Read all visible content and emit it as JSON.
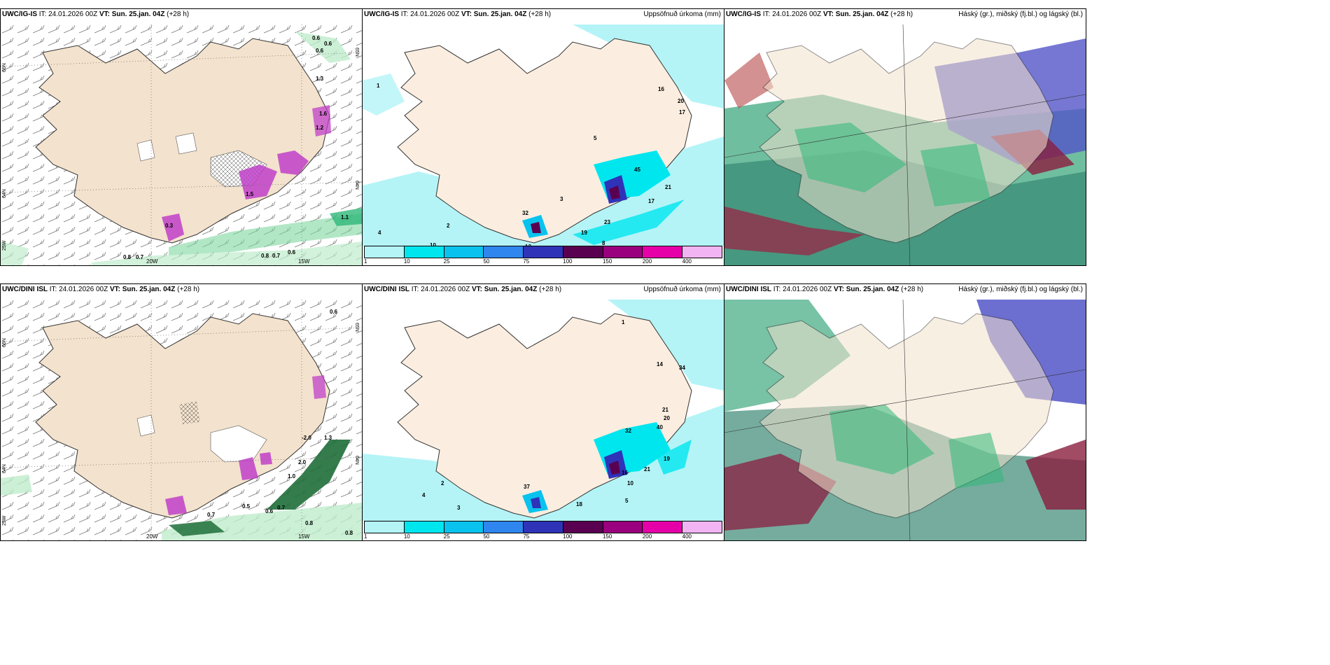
{
  "rows": [
    {
      "panels": [
        {
          "model": "UWC/IG-IS",
          "init_label": "IT:",
          "init_time": "24.01.2026 00Z",
          "vt_label": "VT:",
          "valid_time": "Sun. 25.jan. 04Z",
          "lead": "(+28 h)",
          "right_title": ""
        },
        {
          "model": "UWC/IG-IS",
          "init_label": "IT:",
          "init_time": "24.01.2026 00Z",
          "vt_label": "VT:",
          "valid_time": "Sun. 25.jan. 04Z",
          "lead": "(+28 h)",
          "right_title": "Uppsöfnuð úrkoma (mm)"
        },
        {
          "model": "UWC/IG-IS",
          "init_label": "IT:",
          "init_time": "24.01.2026 00Z",
          "vt_label": "VT:",
          "valid_time": "Sun. 25.jan. 04Z",
          "lead": "(+28 h)",
          "right_title": "Háský (gr.), miðský (fj.bl.) og lágský (bl.)"
        }
      ]
    },
    {
      "panels": [
        {
          "model": "UWC/DINI ISL",
          "init_label": "IT:",
          "init_time": "24.01.2026 00Z",
          "vt_label": "VT:",
          "valid_time": "Sun. 25.jan. 04Z",
          "lead": "(+28 h)",
          "right_title": ""
        },
        {
          "model": "UWC/DINI ISL",
          "init_label": "IT:",
          "init_time": "24.01.2026 00Z",
          "vt_label": "VT:",
          "valid_time": "Sun. 25.jan. 04Z",
          "lead": "(+28 h)",
          "right_title": "Uppsöfnuð úrkoma (mm)"
        },
        {
          "model": "UWC/DINI ISL",
          "init_label": "IT:",
          "init_time": "24.01.2026 00Z",
          "vt_label": "VT:",
          "valid_time": "Sun. 25.jan. 04Z",
          "lead": "(+28 h)",
          "right_title": "Háský (gr.), miðský (fj.bl.) og lágský (bl.)"
        }
      ]
    }
  ],
  "graticule": {
    "lon_left": "20W",
    "lon_right": "15W",
    "lat_top": "66N",
    "lat_mid": "64N",
    "lat_low": "25W",
    "lat_right_top": "65N",
    "lat_right_mid": "64N"
  },
  "colorbar": {
    "ticks": [
      "1",
      "10",
      "25",
      "50",
      "75",
      "100",
      "150",
      "200",
      "400"
    ],
    "colors": [
      "#b4f4f7",
      "#00e6ef",
      "#09c3ee",
      "#2f86ee",
      "#2f33b8",
      "#5a0050",
      "#9a007e",
      "#e600a8",
      "#f2b4f2"
    ]
  },
  "labels": {
    "p0": [
      "0.6",
      "0.8",
      "1.3",
      "1.2",
      "0.3",
      "0.7",
      "0.8",
      "0.7",
      "0.6",
      "0.6",
      "0.6",
      "1.1",
      "1.6",
      "1.5"
    ],
    "p1": [
      "1",
      "2",
      "4",
      "16",
      "20",
      "17",
      "19",
      "23",
      "21",
      "17",
      "32",
      "13",
      "10",
      "8",
      "3",
      "5",
      "45"
    ],
    "p3": [
      "0.6",
      "-2.0",
      "1.0",
      "0.7",
      "0.5",
      "0.6",
      "0.7",
      "0.8",
      "0.8",
      "1.3",
      "2.0"
    ],
    "p4": [
      "1",
      "2",
      "4",
      "14",
      "34",
      "32",
      "21",
      "20",
      "40",
      "19",
      "21",
      "16",
      "10",
      "18",
      "37",
      "3",
      "5"
    ]
  },
  "colors": {
    "land": "#f3e2cd",
    "precip_light": "#b4f4f7",
    "green": "#2fb878",
    "magenta": "#c040c8"
  }
}
